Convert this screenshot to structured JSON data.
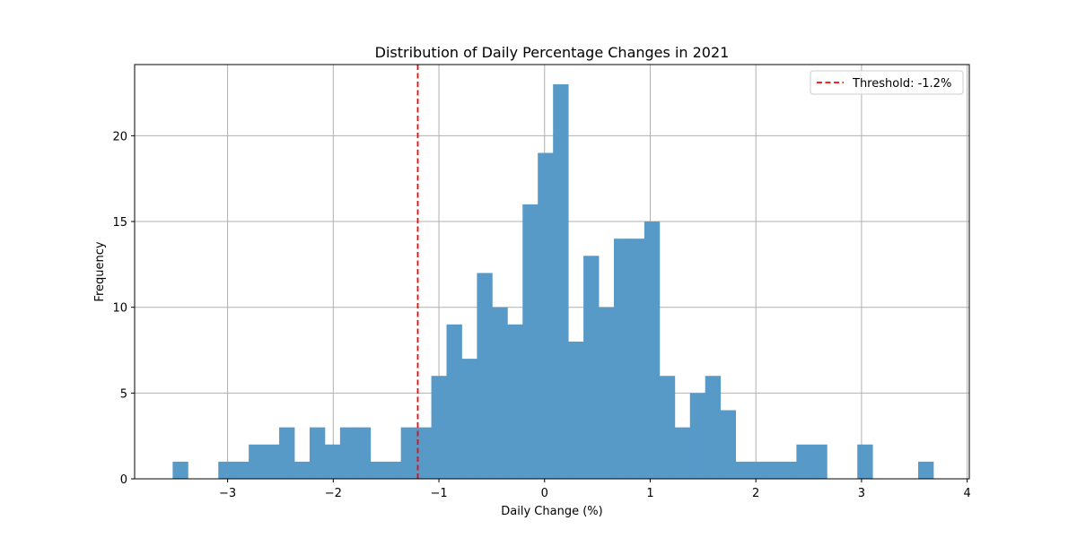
{
  "chart_data": {
    "type": "bar",
    "title": "Distribution of Daily Percentage Changes in 2021",
    "xlabel": "Daily Change (%)",
    "ylabel": "Frequency",
    "xlim": [
      -3.88,
      4.02
    ],
    "ylim": [
      0,
      24.15
    ],
    "xticks": [
      -3,
      -2,
      -1,
      0,
      1,
      2,
      3,
      4
    ],
    "xtick_labels": [
      "−3",
      "−2",
      "−1",
      "0",
      "1",
      "2",
      "3",
      "4"
    ],
    "yticks": [
      0,
      5,
      10,
      15,
      20
    ],
    "ytick_labels": [
      "0",
      "5",
      "10",
      "15",
      "20"
    ],
    "grid": true,
    "bar_color": "#5799c7",
    "bin_edges": [
      -3.52,
      -3.376,
      -3.232,
      -3.088,
      -2.944,
      -2.8,
      -2.656,
      -2.512,
      -2.368,
      -2.224,
      -2.08,
      -1.936,
      -1.792,
      -1.648,
      -1.504,
      -1.36,
      -1.216,
      -1.072,
      -0.928,
      -0.784,
      -0.64,
      -0.496,
      -0.352,
      -0.208,
      -0.064,
      0.08,
      0.224,
      0.368,
      0.512,
      0.656,
      0.8,
      0.944,
      1.088,
      1.232,
      1.376,
      1.52,
      1.664,
      1.808,
      1.952,
      2.096,
      2.24,
      2.384,
      2.528,
      2.672,
      2.816,
      2.96,
      3.104,
      3.248,
      3.392,
      3.536,
      3.68
    ],
    "counts": [
      1,
      0,
      0,
      1,
      1,
      2,
      2,
      3,
      1,
      3,
      2,
      3,
      3,
      1,
      1,
      3,
      3,
      6,
      9,
      7,
      12,
      10,
      9,
      16,
      19,
      23,
      8,
      13,
      10,
      14,
      14,
      15,
      6,
      3,
      5,
      6,
      4,
      1,
      1,
      1,
      1,
      2,
      2,
      0,
      0,
      2,
      0,
      0,
      0,
      1
    ],
    "threshold": {
      "value": -1.2,
      "label": "Threshold: -1.2%",
      "color": "#ff0000",
      "style": "dashed"
    },
    "legend_position": "top-right"
  }
}
